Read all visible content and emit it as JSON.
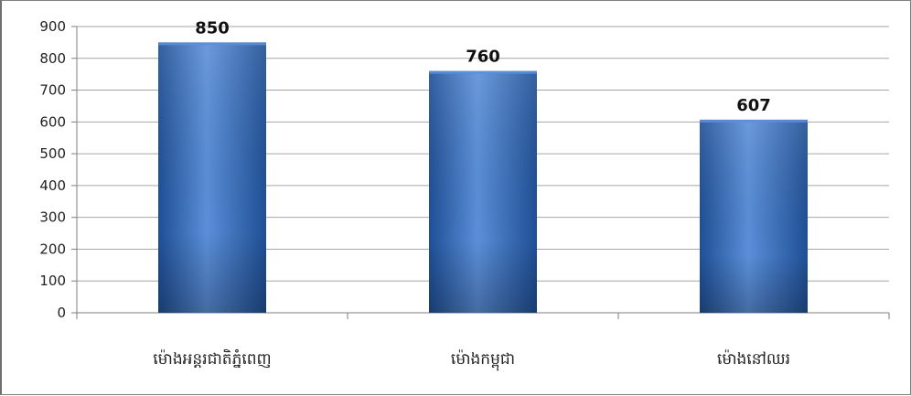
{
  "chart_data": {
    "type": "bar",
    "categories": [
      "ម៉ោងអន្តរជាតិភ្នំពេញ",
      "ម៉ោងកម្ពុជា",
      "ម៉ោងនៅឈរ"
    ],
    "values": [
      850,
      760,
      607
    ],
    "data_labels": [
      "850",
      "760",
      "607"
    ],
    "title": "",
    "xlabel": "",
    "ylabel": "",
    "ylim": [
      0,
      900
    ],
    "yticks": [
      0,
      100,
      200,
      300,
      400,
      500,
      600,
      700,
      800,
      900
    ],
    "grid": true,
    "legend": "none",
    "colors": {
      "bar_light": "#5b8fd9",
      "bar_mid": "#3a75c9",
      "bar_dark": "#1f4f95",
      "grid": "#a6a6a6",
      "axis": "#7f7f7f"
    }
  }
}
